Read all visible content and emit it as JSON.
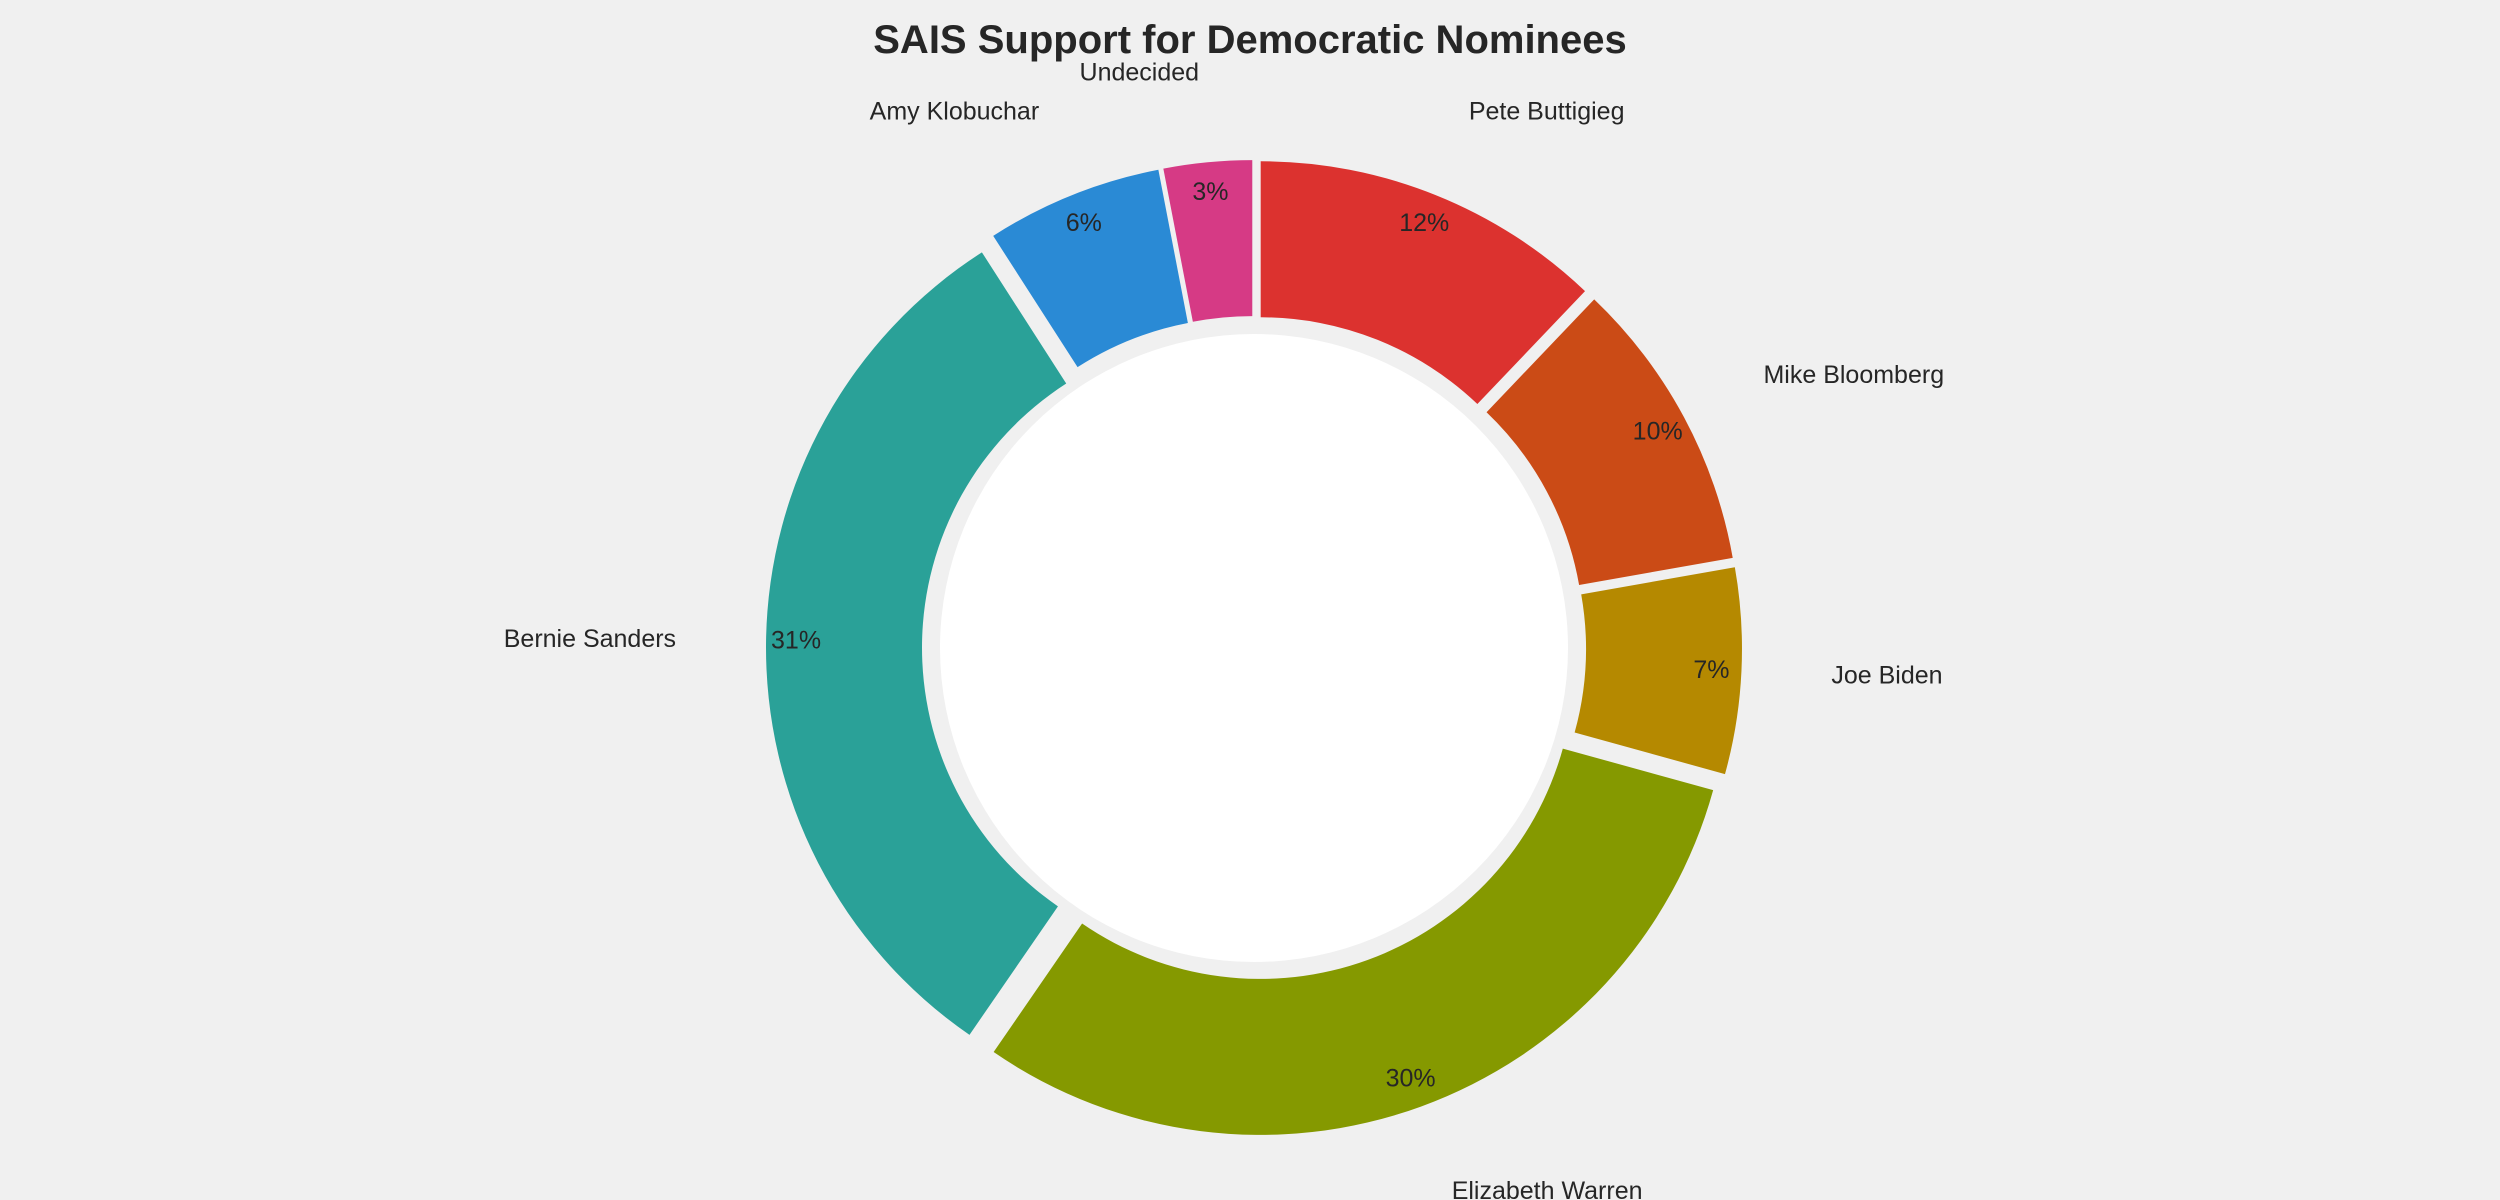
{
  "chart_data": {
    "type": "pie",
    "title": "SAIS Support for Democratic Nominees",
    "donut": true,
    "slices": [
      {
        "label": "Undecided",
        "value": 3,
        "pct_label": "3%",
        "color": "#d63a85"
      },
      {
        "label": "Amy Klobuchar",
        "value": 6,
        "pct_label": "6%",
        "color": "#2a8ad5"
      },
      {
        "label": "Bernie Sanders",
        "value": 31,
        "pct_label": "31%",
        "color": "#2aa198"
      },
      {
        "label": "Elizabeth Warren",
        "value": 30,
        "pct_label": "30%",
        "color": "#859900"
      },
      {
        "label": "Joe Biden",
        "value": 7,
        "pct_label": "7%",
        "color": "#b58900"
      },
      {
        "label": "Mike Bloomberg",
        "value": 10,
        "pct_label": "10%",
        "color": "#cb4b16"
      },
      {
        "label": "Pete Buttigieg",
        "value": 12,
        "pct_label": "12%",
        "color": "#dc322f"
      }
    ],
    "start_angle": "top",
    "direction": "counterclockwise",
    "legend": "none"
  }
}
